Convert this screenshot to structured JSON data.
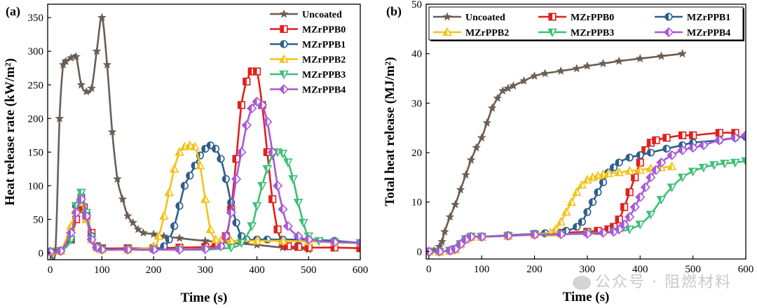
{
  "colors": {
    "uncoated": "#6b5e54",
    "mzrppb0": "#e0201b",
    "mzrppb1": "#2e5f8c",
    "mzrppb2": "#f2c318",
    "mzrppb3": "#3dbf76",
    "mzrppb4": "#a858d6"
  },
  "watermark": {
    "text": "公众号 · 阻燃材料",
    "icon": "wechat-icon"
  },
  "chart_data": [
    {
      "type": "line",
      "panel_label": "(a)",
      "title": "",
      "xlabel": "Time (s)",
      "ylabel": "Heat release rate (kW/m²)",
      "xlim": [
        -5,
        600
      ],
      "ylim": [
        -10,
        370
      ],
      "xticks": [
        0,
        100,
        200,
        300,
        400,
        500,
        600
      ],
      "yticks": [
        0,
        50,
        100,
        150,
        200,
        250,
        300,
        350
      ],
      "legend": {
        "placement": "top-right",
        "entries": [
          "Uncoated",
          "MZrPPB0",
          "MZrPPB1",
          "MZrPPB2",
          "MZrPPB3",
          "MZrPPB4"
        ]
      },
      "series": [
        {
          "name": "Uncoated",
          "marker": "star",
          "color": "#6b5e54",
          "x": [
            0,
            10,
            18,
            25,
            30,
            40,
            50,
            60,
            70,
            80,
            90,
            100,
            110,
            120,
            130,
            140,
            150,
            160,
            170,
            180,
            200,
            220,
            250,
            300,
            350,
            400,
            450,
            500
          ],
          "y": [
            2,
            5,
            200,
            280,
            285,
            290,
            292,
            250,
            240,
            245,
            300,
            350,
            280,
            180,
            110,
            80,
            55,
            45,
            35,
            30,
            28,
            25,
            22,
            18,
            15,
            12,
            8,
            5
          ]
        },
        {
          "name": "MZrPPB0",
          "marker": "square",
          "color": "#e0201b",
          "x": [
            0,
            20,
            40,
            50,
            60,
            65,
            70,
            80,
            90,
            100,
            150,
            200,
            250,
            300,
            320,
            340,
            350,
            360,
            370,
            380,
            390,
            400,
            410,
            420,
            430,
            440,
            450,
            460,
            480,
            500,
            550,
            600
          ],
          "y": [
            2,
            3,
            20,
            50,
            65,
            68,
            55,
            30,
            10,
            7,
            7,
            7,
            8,
            9,
            12,
            25,
            65,
            140,
            220,
            255,
            270,
            270,
            220,
            150,
            80,
            35,
            15,
            10,
            9,
            8,
            8,
            7
          ]
        },
        {
          "name": "MZrPPB1",
          "marker": "circle",
          "color": "#2e5f8c",
          "x": [
            0,
            20,
            40,
            50,
            60,
            70,
            80,
            90,
            100,
            150,
            200,
            220,
            230,
            240,
            250,
            260,
            270,
            280,
            290,
            300,
            310,
            320,
            330,
            340,
            350,
            360,
            370,
            380,
            400,
            420,
            450,
            480,
            500,
            550,
            600
          ],
          "y": [
            2,
            3,
            20,
            70,
            85,
            60,
            25,
            10,
            6,
            5,
            5,
            10,
            20,
            40,
            70,
            100,
            115,
            130,
            145,
            155,
            160,
            155,
            140,
            110,
            75,
            45,
            25,
            20,
            20,
            20,
            20,
            20,
            20,
            18,
            15
          ]
        },
        {
          "name": "MZrPPB2",
          "marker": "triangle-up",
          "color": "#f2c318",
          "x": [
            0,
            20,
            40,
            50,
            60,
            70,
            80,
            90,
            100,
            150,
            200,
            210,
            220,
            230,
            240,
            250,
            260,
            270,
            280,
            290,
            300,
            310,
            320,
            330,
            350,
            400,
            450,
            500,
            550,
            600
          ],
          "y": [
            2,
            3,
            40,
            65,
            75,
            50,
            20,
            8,
            5,
            5,
            10,
            25,
            55,
            90,
            125,
            150,
            158,
            160,
            158,
            130,
            80,
            35,
            20,
            18,
            18,
            18,
            18,
            17,
            16,
            15
          ]
        },
        {
          "name": "MZrPPB3",
          "marker": "triangle-down",
          "color": "#3dbf76",
          "x": [
            0,
            20,
            40,
            50,
            60,
            70,
            80,
            90,
            100,
            150,
            200,
            250,
            300,
            350,
            370,
            390,
            400,
            410,
            420,
            430,
            440,
            450,
            460,
            470,
            480,
            490,
            500,
            520,
            550,
            600
          ],
          "y": [
            2,
            3,
            20,
            70,
            90,
            60,
            20,
            8,
            5,
            5,
            5,
            5,
            5,
            8,
            15,
            40,
            70,
            100,
            125,
            145,
            150,
            148,
            135,
            110,
            75,
            45,
            25,
            18,
            16,
            15
          ]
        },
        {
          "name": "MZrPPB4",
          "marker": "diamond",
          "color": "#a858d6",
          "x": [
            0,
            20,
            40,
            50,
            60,
            70,
            80,
            90,
            100,
            150,
            200,
            250,
            300,
            330,
            340,
            350,
            360,
            370,
            380,
            390,
            400,
            410,
            420,
            430,
            440,
            450,
            460,
            480,
            500,
            550,
            600
          ],
          "y": [
            2,
            3,
            30,
            60,
            80,
            55,
            20,
            8,
            5,
            5,
            5,
            5,
            6,
            10,
            25,
            60,
            110,
            150,
            190,
            215,
            225,
            220,
            195,
            150,
            100,
            65,
            40,
            25,
            20,
            16,
            15
          ]
        }
      ]
    },
    {
      "type": "line",
      "panel_label": "(b)",
      "title": "",
      "xlabel": "Time (s)",
      "ylabel": "Total heat release (MJ/m²)",
      "xlim": [
        -5,
        600
      ],
      "ylim": [
        -1.5,
        50
      ],
      "xticks": [
        0,
        100,
        200,
        300,
        400,
        500,
        600
      ],
      "yticks": [
        0,
        10,
        20,
        30,
        40,
        50
      ],
      "legend": {
        "placement": "top",
        "entries": [
          "Uncoated",
          "MZrPPB0",
          "MZrPPB1",
          "MZrPPB2",
          "MZrPPB3",
          "MZrPPB4"
        ]
      },
      "series": [
        {
          "name": "Uncoated",
          "marker": "star",
          "color": "#6b5e54",
          "x": [
            0,
            10,
            20,
            25,
            30,
            40,
            50,
            60,
            70,
            80,
            90,
            100,
            110,
            120,
            130,
            140,
            150,
            160,
            180,
            200,
            220,
            250,
            280,
            300,
            330,
            360,
            400,
            440,
            480
          ],
          "y": [
            0,
            0.2,
            1,
            2,
            4,
            7,
            9.5,
            12.5,
            15.5,
            18.5,
            21,
            23,
            26,
            29,
            31,
            32.5,
            33,
            33.5,
            34.5,
            35.5,
            36,
            36.5,
            37,
            37.5,
            38,
            38.5,
            39,
            39.5,
            40
          ]
        },
        {
          "name": "MZrPPB0",
          "marker": "square",
          "color": "#e0201b",
          "x": [
            0,
            20,
            40,
            50,
            60,
            70,
            80,
            100,
            150,
            200,
            250,
            300,
            320,
            340,
            350,
            360,
            370,
            380,
            390,
            400,
            410,
            420,
            430,
            450,
            480,
            500,
            550,
            580
          ],
          "y": [
            0,
            0,
            0.2,
            0.5,
            1.5,
            2.5,
            3,
            3,
            3.2,
            3.5,
            3.8,
            4,
            4.2,
            4.5,
            5,
            6.5,
            9,
            12,
            15,
            18,
            20.5,
            22,
            22.5,
            23,
            23.5,
            23.5,
            24,
            24
          ]
        },
        {
          "name": "MZrPPB1",
          "marker": "circle",
          "color": "#2e5f8c",
          "x": [
            0,
            20,
            40,
            50,
            60,
            70,
            80,
            100,
            150,
            200,
            220,
            240,
            260,
            280,
            290,
            300,
            310,
            320,
            330,
            340,
            350,
            360,
            380,
            400,
            420,
            450,
            480,
            500,
            550,
            580,
            600
          ],
          "y": [
            0,
            0,
            0.2,
            0.5,
            1.5,
            2.5,
            3,
            3,
            3.3,
            3.6,
            3.7,
            4,
            4.2,
            5,
            6,
            8,
            10,
            12,
            14,
            16,
            17,
            18,
            19,
            19.5,
            20,
            20.8,
            21.5,
            22,
            22.5,
            23,
            23.2
          ]
        },
        {
          "name": "MZrPPB2",
          "marker": "triangle-up",
          "color": "#f2c318",
          "x": [
            0,
            20,
            40,
            50,
            60,
            70,
            80,
            100,
            150,
            200,
            230,
            240,
            250,
            260,
            270,
            280,
            290,
            300,
            310,
            320,
            330,
            340,
            360,
            380,
            400,
            420,
            440,
            460
          ],
          "y": [
            0,
            0,
            0.2,
            0.5,
            1.5,
            2.5,
            3,
            3,
            3.2,
            3.5,
            3.8,
            4.5,
            6,
            8,
            10,
            12,
            13.5,
            14.5,
            15,
            15.3,
            15.6,
            15.8,
            16,
            16.3,
            16.5,
            16.8,
            17,
            17.2
          ]
        },
        {
          "name": "MZrPPB3",
          "marker": "triangle-down",
          "color": "#3dbf76",
          "x": [
            0,
            20,
            40,
            50,
            60,
            70,
            80,
            100,
            150,
            200,
            250,
            300,
            350,
            380,
            400,
            420,
            440,
            460,
            480,
            500,
            520,
            540,
            560,
            580,
            600
          ],
          "y": [
            0,
            0,
            0.2,
            0.5,
            1.5,
            2.5,
            3,
            3,
            3.2,
            3.4,
            3.5,
            3.7,
            4,
            4.5,
            5.5,
            7.5,
            10.5,
            13,
            15,
            16.2,
            17,
            17.5,
            17.8,
            18,
            18.3
          ]
        },
        {
          "name": "MZrPPB4",
          "marker": "diamond",
          "color": "#a858d6",
          "x": [
            0,
            20,
            40,
            50,
            60,
            70,
            80,
            100,
            150,
            200,
            250,
            300,
            330,
            350,
            360,
            370,
            380,
            390,
            400,
            410,
            420,
            430,
            440,
            460,
            480,
            500,
            520,
            550,
            580,
            600
          ],
          "y": [
            0,
            0,
            0.2,
            0.5,
            1.5,
            2.5,
            3,
            3,
            3.2,
            3.4,
            3.5,
            3.6,
            3.8,
            4,
            4.5,
            5.5,
            7,
            9,
            11,
            13,
            15,
            16.5,
            18,
            19.5,
            20.5,
            21,
            21.5,
            22.5,
            23,
            23.5
          ]
        }
      ]
    }
  ]
}
